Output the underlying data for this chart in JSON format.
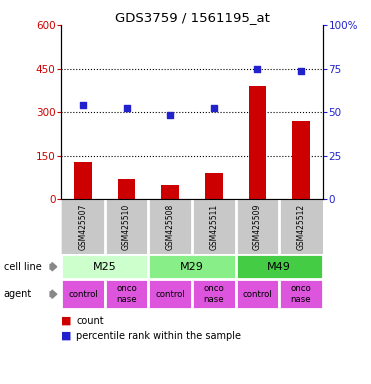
{
  "title": "GDS3759 / 1561195_at",
  "samples": [
    "GSM425507",
    "GSM425510",
    "GSM425508",
    "GSM425511",
    "GSM425509",
    "GSM425512"
  ],
  "counts": [
    130,
    70,
    50,
    90,
    390,
    270
  ],
  "percentile_ranks_left_scale": [
    325,
    315,
    290,
    315,
    450,
    440
  ],
  "left_ylim": [
    0,
    600
  ],
  "left_yticks": [
    0,
    150,
    300,
    450,
    600
  ],
  "right_ylim": [
    0,
    100
  ],
  "right_yticks": [
    0,
    25,
    50,
    75,
    100
  ],
  "right_yticklabels": [
    "0",
    "25",
    "50",
    "75",
    "100%"
  ],
  "bar_color": "#cc0000",
  "scatter_color": "#2222cc",
  "ytick_color_left": "#cc0000",
  "ytick_color_right": "#2222cc",
  "gsm_bg_color": "#c8c8c8",
  "hline_y": [
    150,
    300,
    450
  ],
  "cell_line_groups": [
    [
      "M25",
      0,
      2
    ],
    [
      "M29",
      2,
      4
    ],
    [
      "M49",
      4,
      6
    ]
  ],
  "cell_colors": {
    "M25": "#ccffcc",
    "M29": "#88ee88",
    "M49": "#44cc44"
  },
  "agents": [
    "control",
    "onconase",
    "control",
    "onconase",
    "control",
    "onconase"
  ],
  "agent_color": "#dd55dd",
  "background_color": "#ffffff",
  "legend_count_color": "#cc0000",
  "legend_pct_color": "#2222cc"
}
